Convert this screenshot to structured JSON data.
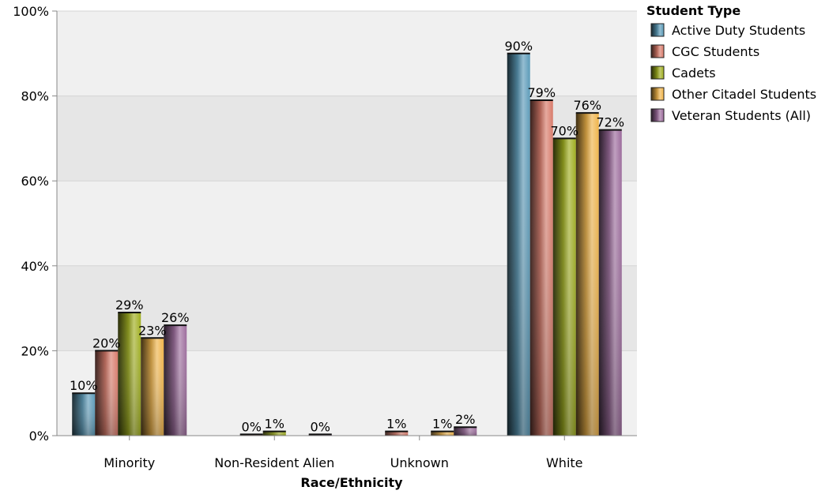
{
  "chart_data": {
    "type": "bar",
    "title": "",
    "xlabel": "Race/Ethnicity",
    "ylabel": "",
    "ylim": [
      0,
      100
    ],
    "yticks": [
      0,
      20,
      40,
      60,
      80,
      100
    ],
    "ytick_labels": [
      "0%",
      "20%",
      "40%",
      "60%",
      "80%",
      "100%"
    ],
    "categories": [
      "Minority",
      "Non-Resident Alien",
      "Unknown",
      "White"
    ],
    "legend": {
      "title": "Student Type",
      "placement": "top-right"
    },
    "grid": true,
    "series": [
      {
        "name": "Active Duty Students",
        "color": "#5a9ab8",
        "values": [
          10,
          null,
          null,
          90
        ],
        "labels": [
          "10%",
          "",
          "",
          "90%"
        ]
      },
      {
        "name": "CGC Students",
        "color": "#d97a6a",
        "values": [
          20,
          0.3,
          1,
          79
        ],
        "labels": [
          "20%",
          "0%",
          "1%",
          "79%"
        ]
      },
      {
        "name": "Cadets",
        "color": "#9fae1e",
        "values": [
          29,
          1,
          null,
          70
        ],
        "labels": [
          "29%",
          "1%",
          "",
          "70%"
        ]
      },
      {
        "name": "Other Citadel Students",
        "color": "#f0b449",
        "values": [
          23,
          null,
          1,
          76
        ],
        "labels": [
          "23%",
          "",
          "1%",
          "76%"
        ]
      },
      {
        "name": "Veteran Students (All)",
        "color": "#9c6b9c",
        "values": [
          26,
          0.3,
          2,
          72
        ],
        "labels": [
          "26%",
          "0%",
          "2%",
          "72%"
        ]
      }
    ]
  }
}
